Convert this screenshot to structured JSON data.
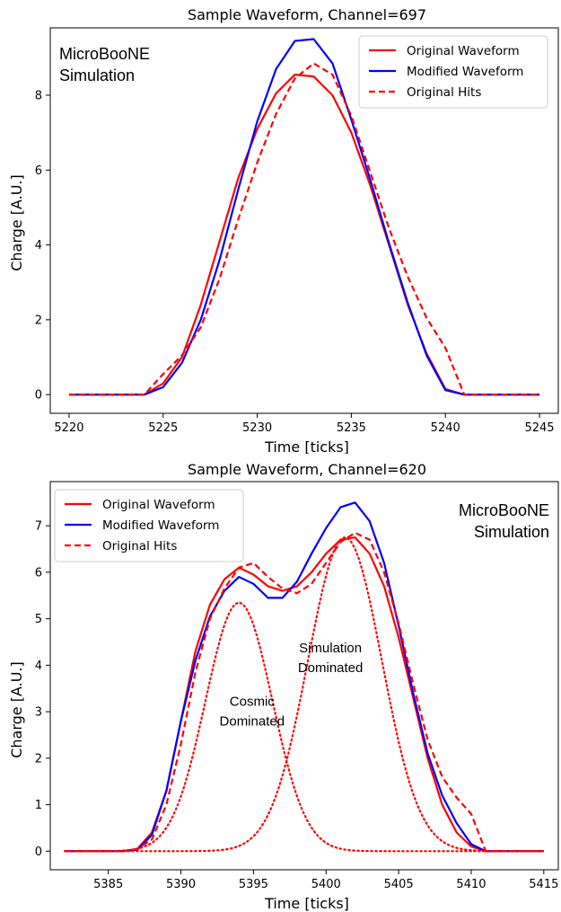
{
  "chart_data": [
    {
      "type": "line",
      "title": "Sample Waveform, Channel=697",
      "xlabel": "Time [ticks]",
      "ylabel": "Charge [A.U.]",
      "xlim": [
        5219,
        5246
      ],
      "ylim": [
        -0.5,
        9.8
      ],
      "xticks": [
        5220,
        5225,
        5230,
        5235,
        5240,
        5245
      ],
      "yticks": [
        0,
        2,
        4,
        6,
        8
      ],
      "legend": "top-right",
      "annotation": [
        "MicroBooNE",
        "Simulation"
      ],
      "series": [
        {
          "name": "Original Waveform",
          "color": "#ff0000",
          "style": "solid",
          "x": [
            5220,
            5221,
            5222,
            5223,
            5224,
            5225,
            5226,
            5227,
            5228,
            5229,
            5230,
            5231,
            5232,
            5233,
            5234,
            5235,
            5236,
            5237,
            5238,
            5239,
            5240,
            5241,
            5242,
            5243,
            5244,
            5245
          ],
          "y": [
            0,
            0,
            0,
            0,
            0,
            0.3,
            1.0,
            2.4,
            4.1,
            5.8,
            7.1,
            8.05,
            8.55,
            8.5,
            8.0,
            7.0,
            5.6,
            4.0,
            2.4,
            1.1,
            0.15,
            0,
            0,
            0,
            0,
            0
          ]
        },
        {
          "name": "Modified Waveform",
          "color": "#0000ff",
          "style": "solid",
          "x": [
            5220,
            5221,
            5222,
            5223,
            5224,
            5225,
            5226,
            5227,
            5228,
            5229,
            5230,
            5231,
            5232,
            5233,
            5234,
            5235,
            5236,
            5237,
            5238,
            5239,
            5240,
            5241,
            5242,
            5243,
            5244,
            5245
          ],
          "y": [
            0,
            0,
            0,
            0,
            0,
            0.2,
            0.85,
            2.0,
            3.6,
            5.5,
            7.3,
            8.7,
            9.45,
            9.5,
            8.85,
            7.35,
            5.75,
            4.05,
            2.45,
            1.05,
            0.12,
            0,
            0,
            0,
            0,
            0
          ]
        },
        {
          "name": "Original Hits",
          "color": "#ff0000",
          "style": "dashed",
          "x": [
            5220,
            5221,
            5222,
            5223,
            5224,
            5225,
            5226,
            5227,
            5228,
            5229,
            5230,
            5231,
            5232,
            5233,
            5234,
            5235,
            5236,
            5237,
            5238,
            5239,
            5240,
            5241,
            5242,
            5243,
            5244,
            5245
          ],
          "y": [
            0,
            0,
            0,
            0,
            0,
            0.55,
            1.05,
            1.8,
            3.1,
            4.7,
            6.2,
            7.5,
            8.45,
            8.85,
            8.55,
            7.45,
            5.95,
            4.45,
            3.15,
            2.05,
            1.25,
            0,
            0,
            0,
            0,
            0
          ]
        }
      ]
    },
    {
      "type": "line",
      "title": "Sample Waveform, Channel=620",
      "xlabel": "Time [ticks]",
      "ylabel": "Charge [A.U.]",
      "xlim": [
        5381,
        5416
      ],
      "ylim": [
        -0.4,
        7.95
      ],
      "xticks": [
        5385,
        5390,
        5395,
        5400,
        5405,
        5410,
        5415
      ],
      "yticks": [
        0,
        1,
        2,
        3,
        4,
        5,
        6,
        7
      ],
      "legend": "top-left",
      "annotation": [
        "MicroBooNE",
        "Simulation"
      ],
      "region_labels": [
        {
          "lines": [
            "Simulation",
            "Dominated"
          ],
          "x": 5400.3,
          "y": 4.05
        },
        {
          "lines": [
            "Cosmic",
            "Dominated"
          ],
          "x": 5394.9,
          "y": 2.9
        }
      ],
      "series": [
        {
          "name": "Original Waveform",
          "color": "#ff0000",
          "style": "solid",
          "x": [
            5382,
            5383,
            5384,
            5385,
            5386,
            5387,
            5388,
            5389,
            5390,
            5391,
            5392,
            5393,
            5394,
            5395,
            5396,
            5397,
            5398,
            5399,
            5400,
            5401,
            5402,
            5403,
            5404,
            5405,
            5406,
            5407,
            5408,
            5409,
            5410,
            5411,
            5412,
            5413,
            5414,
            5415
          ],
          "y": [
            0,
            0,
            0,
            0,
            0,
            0.05,
            0.4,
            1.3,
            2.8,
            4.3,
            5.3,
            5.85,
            6.1,
            5.95,
            5.7,
            5.6,
            5.7,
            6.0,
            6.4,
            6.7,
            6.75,
            6.4,
            5.7,
            4.6,
            3.3,
            2.0,
            1.0,
            0.4,
            0.1,
            0,
            0,
            0,
            0,
            0
          ]
        },
        {
          "name": "Modified Waveform",
          "color": "#0000ff",
          "style": "solid",
          "x": [
            5382,
            5383,
            5384,
            5385,
            5386,
            5387,
            5388,
            5389,
            5390,
            5391,
            5392,
            5393,
            5394,
            5395,
            5396,
            5397,
            5398,
            5399,
            5400,
            5401,
            5402,
            5403,
            5404,
            5405,
            5406,
            5407,
            5408,
            5409,
            5410,
            5411,
            5412,
            5413,
            5414,
            5415
          ],
          "y": [
            0,
            0,
            0,
            0,
            0,
            0.03,
            0.35,
            1.3,
            2.8,
            4.1,
            5.05,
            5.6,
            5.9,
            5.75,
            5.45,
            5.45,
            5.8,
            6.4,
            6.95,
            7.4,
            7.5,
            7.1,
            6.2,
            4.85,
            3.4,
            2.1,
            1.2,
            0.6,
            0.15,
            0,
            0,
            0,
            0,
            0
          ]
        },
        {
          "name": "Original Hits",
          "color": "#ff0000",
          "style": "dashed",
          "x": [
            5382,
            5383,
            5384,
            5385,
            5386,
            5387,
            5388,
            5389,
            5390,
            5391,
            5392,
            5393,
            5394,
            5395,
            5396,
            5397,
            5398,
            5399,
            5400,
            5401,
            5402,
            5403,
            5404,
            5405,
            5406,
            5407,
            5408,
            5409,
            5410,
            5411,
            5412,
            5413,
            5414,
            5415
          ],
          "y": [
            0,
            0,
            0,
            0,
            0,
            0.05,
            0.25,
            1.0,
            2.3,
            3.85,
            5.0,
            5.65,
            6.1,
            6.2,
            5.9,
            5.65,
            5.55,
            5.75,
            6.2,
            6.65,
            6.85,
            6.7,
            6.0,
            4.9,
            3.6,
            2.4,
            1.6,
            1.15,
            0.8,
            0,
            0,
            0,
            0,
            0
          ]
        },
        {
          "name": "Cosmic hit",
          "color": "#ff0000",
          "style": "dotted",
          "gauss": {
            "mu": 5394,
            "sigma": 2.3,
            "amp": 5.35,
            "from": 5382,
            "to": 5415
          }
        },
        {
          "name": "Simulation hit",
          "color": "#ff0000",
          "style": "dotted",
          "gauss": {
            "mu": 5401.3,
            "sigma": 2.55,
            "amp": 6.75,
            "from": 5382,
            "to": 5415
          }
        }
      ]
    }
  ]
}
